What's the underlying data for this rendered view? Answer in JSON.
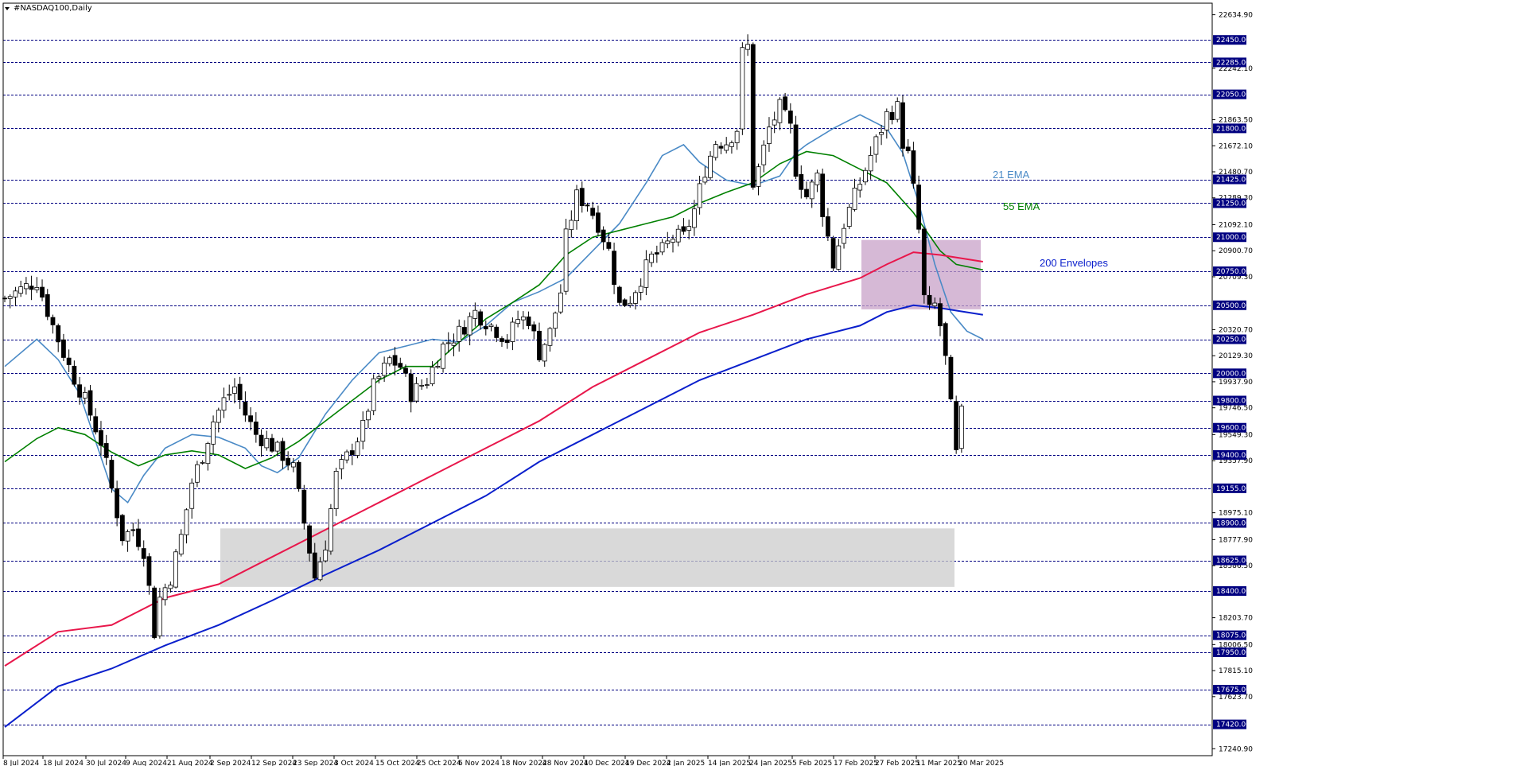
{
  "window": {
    "title": "#NASDAQ100,Daily",
    "menu_icon": "triangle-down-icon"
  },
  "chart_data": {
    "type": "candlestick",
    "symbol": "#NASDAQ100",
    "timeframe": "Daily",
    "ylim": [
      17190,
      22720
    ],
    "grid": "horizontal dashed at levels",
    "price_scale_ticks": [
      "22634.90",
      "22450.00",
      "22285.00",
      "22242.10",
      "22050.00",
      "21863.50",
      "21800.00",
      "21672.10",
      "21480.70",
      "21425.00",
      "21289.30",
      "21250.00",
      "21092.10",
      "21000.00",
      "20900.70",
      "20750.00",
      "20709.30",
      "20500.00",
      "20320.70",
      "20250.00",
      "20129.30",
      "20000.00",
      "19937.90",
      "19800.00",
      "19746.50",
      "19600.00",
      "19549.30",
      "19400.00",
      "19357.90",
      "19155.00",
      "18975.10",
      "18900.00",
      "18777.90",
      "18625.00",
      "18586.50",
      "18400.00",
      "18203.70",
      "18075.00",
      "18006.50",
      "17950.00",
      "17815.10",
      "17675.00",
      "17623.70",
      "17420.00",
      "17240.90"
    ],
    "levels": [
      "22450.00",
      "22285.00",
      "22050.00",
      "21800.00",
      "21425.00",
      "21250.00",
      "21000.00",
      "20750.00",
      "20500.00",
      "20250.00",
      "20000.00",
      "19800.00",
      "19600.00",
      "19400.00",
      "19155.00",
      "18900.00",
      "18625.00",
      "18400.00",
      "18075.00",
      "17950.00",
      "17675.00",
      "17420.00"
    ],
    "level_color": "#000080",
    "x_tick_labels": [
      "8 Jul 2024",
      "18 Jul 2024",
      "30 Jul 2024",
      "9 Aug 2024",
      "21 Aug 2024",
      "2 Sep 2024",
      "12 Sep 2024",
      "23 Sep 2024",
      "3 Oct 2024",
      "15 Oct 2024",
      "25 Oct 2024",
      "6 Nov 2024",
      "18 Nov 2024",
      "28 Nov 2024",
      "10 Dec 2024",
      "19 Dec 2024",
      "2 Jan 2025",
      "14 Jan 2025",
      "24 Jan 2025",
      "5 Feb 2025",
      "17 Feb 2025",
      "27 Feb 2025",
      "11 Mar 2025",
      "20 Mar 2025"
    ],
    "candle_count": 180,
    "close_path": [
      [
        0,
        20550
      ],
      [
        6,
        20680
      ],
      [
        9,
        20350
      ],
      [
        12,
        20050
      ],
      [
        15,
        19800
      ],
      [
        18,
        19500
      ],
      [
        20,
        19150
      ],
      [
        22,
        18800
      ],
      [
        24,
        18850
      ],
      [
        26,
        18700
      ],
      [
        27,
        18420
      ],
      [
        28,
        18100
      ],
      [
        29,
        18350
      ],
      [
        31,
        18500
      ],
      [
        33,
        18800
      ],
      [
        35,
        19200
      ],
      [
        37,
        19400
      ],
      [
        39,
        19650
      ],
      [
        41,
        19800
      ],
      [
        43,
        19900
      ],
      [
        45,
        19700
      ],
      [
        47,
        19550
      ],
      [
        49,
        19500
      ],
      [
        52,
        19400
      ],
      [
        54,
        19300
      ],
      [
        56,
        18900
      ],
      [
        58,
        18500
      ],
      [
        60,
        18750
      ],
      [
        62,
        19250
      ],
      [
        65,
        19450
      ],
      [
        67,
        19600
      ],
      [
        69,
        19900
      ],
      [
        72,
        20100
      ],
      [
        74,
        20050
      ],
      [
        76,
        19850
      ],
      [
        79,
        19950
      ],
      [
        82,
        20200
      ],
      [
        85,
        20300
      ],
      [
        88,
        20450
      ],
      [
        91,
        20350
      ],
      [
        94,
        20250
      ],
      [
        96,
        20400
      ],
      [
        98,
        20400
      ],
      [
        100,
        20150
      ],
      [
        102,
        20300
      ],
      [
        104,
        20600
      ],
      [
        105,
        21000
      ],
      [
        107,
        21300
      ],
      [
        109,
        21250
      ],
      [
        111,
        21100
      ],
      [
        113,
        20900
      ],
      [
        115,
        20500
      ],
      [
        117,
        20550
      ],
      [
        119,
        20700
      ],
      [
        121,
        20850
      ],
      [
        123,
        20900
      ],
      [
        125,
        21000
      ],
      [
        127,
        21000
      ],
      [
        129,
        21200
      ],
      [
        131,
        21500
      ],
      [
        133,
        21700
      ],
      [
        135,
        21700
      ],
      [
        137,
        21800
      ],
      [
        138,
        22350
      ],
      [
        139,
        22400
      ],
      [
        140,
        21400
      ],
      [
        141,
        21500
      ],
      [
        143,
        21800
      ],
      [
        145,
        21950
      ],
      [
        147,
        21800
      ],
      [
        148,
        21500
      ],
      [
        150,
        21300
      ],
      [
        152,
        21450
      ],
      [
        153,
        21200
      ],
      [
        155,
        20800
      ],
      [
        157,
        21100
      ],
      [
        159,
        21300
      ],
      [
        161,
        21500
      ],
      [
        163,
        21700
      ],
      [
        165,
        21900
      ],
      [
        167,
        21950
      ],
      [
        168,
        21700
      ],
      [
        169,
        21600
      ],
      [
        170,
        21350
      ],
      [
        171,
        21050
      ],
      [
        172,
        20550
      ],
      [
        173,
        20450
      ],
      [
        174,
        20500
      ],
      [
        175,
        20350
      ],
      [
        176,
        20100
      ],
      [
        177,
        19750
      ],
      [
        178,
        19400
      ],
      [
        179,
        19700
      ],
      [
        180,
        19550
      ],
      [
        181,
        19400
      ],
      [
        183,
        19700
      ],
      [
        184,
        19900
      ],
      [
        185,
        20050
      ],
      [
        186,
        19800
      ]
    ],
    "series": [
      {
        "name": "21 EMA",
        "color": "#4a8ac6",
        "points": [
          [
            0,
            20050
          ],
          [
            6,
            20250
          ],
          [
            10,
            20100
          ],
          [
            14,
            19850
          ],
          [
            17,
            19500
          ],
          [
            20,
            19150
          ],
          [
            23,
            19050
          ],
          [
            26,
            19250
          ],
          [
            30,
            19450
          ],
          [
            35,
            19550
          ],
          [
            40,
            19530
          ],
          [
            45,
            19450
          ],
          [
            48,
            19320
          ],
          [
            51,
            19270
          ],
          [
            55,
            19380
          ],
          [
            60,
            19700
          ],
          [
            65,
            19950
          ],
          [
            70,
            20150
          ],
          [
            75,
            20200
          ],
          [
            80,
            20250
          ],
          [
            85,
            20230
          ],
          [
            90,
            20350
          ],
          [
            95,
            20520
          ],
          [
            100,
            20600
          ],
          [
            105,
            20700
          ],
          [
            110,
            20900
          ],
          [
            115,
            21100
          ],
          [
            120,
            21400
          ],
          [
            123,
            21600
          ],
          [
            127,
            21680
          ],
          [
            130,
            21550
          ],
          [
            135,
            21420
          ],
          [
            140,
            21380
          ],
          [
            145,
            21450
          ],
          [
            148,
            21620
          ],
          [
            150,
            21680
          ],
          [
            155,
            21800
          ],
          [
            160,
            21900
          ],
          [
            165,
            21800
          ],
          [
            168,
            21620
          ],
          [
            171,
            21250
          ],
          [
            174,
            20800
          ],
          [
            177,
            20450
          ],
          [
            180,
            20310
          ],
          [
            183,
            20250
          ]
        ]
      },
      {
        "name": "55 EMA",
        "color": "#008000",
        "points": [
          [
            0,
            19350
          ],
          [
            6,
            19520
          ],
          [
            10,
            19600
          ],
          [
            15,
            19550
          ],
          [
            20,
            19420
          ],
          [
            25,
            19320
          ],
          [
            30,
            19400
          ],
          [
            35,
            19430
          ],
          [
            40,
            19400
          ],
          [
            45,
            19300
          ],
          [
            50,
            19380
          ],
          [
            55,
            19500
          ],
          [
            60,
            19650
          ],
          [
            65,
            19800
          ],
          [
            70,
            19950
          ],
          [
            75,
            20050
          ],
          [
            80,
            20050
          ],
          [
            85,
            20230
          ],
          [
            90,
            20400
          ],
          [
            95,
            20520
          ],
          [
            100,
            20650
          ],
          [
            105,
            20870
          ],
          [
            110,
            21000
          ],
          [
            115,
            21050
          ],
          [
            120,
            21100
          ],
          [
            125,
            21150
          ],
          [
            130,
            21250
          ],
          [
            135,
            21330
          ],
          [
            140,
            21400
          ],
          [
            145,
            21540
          ],
          [
            150,
            21630
          ],
          [
            155,
            21600
          ],
          [
            160,
            21500
          ],
          [
            165,
            21400
          ],
          [
            170,
            21180
          ],
          [
            175,
            20900
          ],
          [
            178,
            20800
          ],
          [
            183,
            20760
          ]
        ]
      },
      {
        "name": "200 Envelopes upper",
        "color": "#e8174b",
        "points": [
          [
            0,
            17850
          ],
          [
            10,
            18100
          ],
          [
            20,
            18150
          ],
          [
            30,
            18350
          ],
          [
            40,
            18450
          ],
          [
            50,
            18650
          ],
          [
            60,
            18850
          ],
          [
            70,
            19050
          ],
          [
            80,
            19250
          ],
          [
            90,
            19450
          ],
          [
            100,
            19650
          ],
          [
            110,
            19900
          ],
          [
            120,
            20100
          ],
          [
            130,
            20300
          ],
          [
            140,
            20430
          ],
          [
            150,
            20580
          ],
          [
            160,
            20700
          ],
          [
            165,
            20800
          ],
          [
            170,
            20890
          ],
          [
            175,
            20870
          ],
          [
            183,
            20820
          ]
        ]
      },
      {
        "name": "200 Envelopes lower",
        "color": "#0a1fcc",
        "points": [
          [
            0,
            17400
          ],
          [
            10,
            17700
          ],
          [
            20,
            17830
          ],
          [
            30,
            18000
          ],
          [
            40,
            18150
          ],
          [
            50,
            18330
          ],
          [
            60,
            18520
          ],
          [
            70,
            18700
          ],
          [
            80,
            18900
          ],
          [
            90,
            19100
          ],
          [
            100,
            19350
          ],
          [
            110,
            19550
          ],
          [
            120,
            19750
          ],
          [
            130,
            19950
          ],
          [
            140,
            20100
          ],
          [
            150,
            20250
          ],
          [
            160,
            20350
          ],
          [
            165,
            20450
          ],
          [
            170,
            20500
          ],
          [
            175,
            20480
          ],
          [
            183,
            20430
          ]
        ]
      }
    ],
    "zones": [
      {
        "name": "support-zone",
        "color": "#cccccc",
        "from": 18860,
        "to": 18430
      },
      {
        "name": "envelope-zone",
        "color": "#c8a2c8",
        "from": 20980,
        "to": 20470
      }
    ],
    "annotations": [
      {
        "text": "21 EMA",
        "color": "#4a8ac6"
      },
      {
        "text": "55 EMA",
        "color": "#008000"
      },
      {
        "text": "200 Envelopes",
        "color": "#0a1fcc"
      }
    ]
  }
}
